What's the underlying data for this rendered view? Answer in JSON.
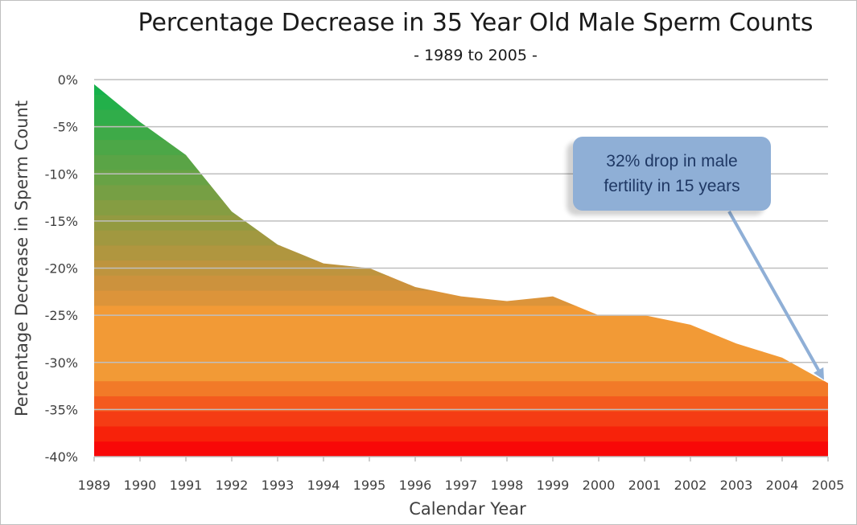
{
  "chart_data": {
    "type": "area",
    "title": "Percentage Decrease in 35 Year Old Male Sperm Counts",
    "subtitle": "- 1989 to 2005 -",
    "xlabel": "Calendar Year",
    "ylabel": "Percentage Decrease in Sperm Count",
    "x": [
      1989,
      1990,
      1991,
      1992,
      1993,
      1994,
      1995,
      1996,
      1997,
      1998,
      1999,
      2000,
      2001,
      2002,
      2003,
      2004,
      2005
    ],
    "values": [
      -0.5,
      -4.5,
      -8,
      -14,
      -17.5,
      -19.5,
      -20,
      -22,
      -23,
      -23.5,
      -23,
      -25,
      -25,
      -26,
      -28,
      -29.5,
      -32.2
    ],
    "ylim": [
      -40,
      0
    ],
    "yticks": [
      0,
      -5,
      -10,
      -15,
      -20,
      -25,
      -30,
      -35,
      -40
    ],
    "ytick_labels": [
      "0%",
      "-5%",
      "-10%",
      "-15%",
      "-20%",
      "-25%",
      "-30%",
      "-35%",
      "-40%"
    ],
    "xtick_labels": [
      "1989",
      "1990",
      "1991",
      "1992",
      "1993",
      "1994",
      "1995",
      "1996",
      "1997",
      "1998",
      "1999",
      "2000",
      "2001",
      "2002",
      "2003",
      "2004",
      "2005"
    ],
    "grid": true,
    "legend": "none",
    "annotation": {
      "text_line1": "32% drop in male",
      "text_line2": "fertility in 15 years",
      "points_to_x": 2005
    },
    "colors": {
      "gridline": "#bfbfbf",
      "callout_fill": "#8fafd6",
      "callout_text": "#1f3864",
      "arrow": "#8fafd6",
      "bands": [
        "#16b14b",
        "#22b04a",
        "#30ad4a",
        "#3eaa48",
        "#4ca747",
        "#5aa446",
        "#68a245",
        "#769f44",
        "#859d42",
        "#939a41",
        "#a19840",
        "#b0963f",
        "#be943e",
        "#cc923d",
        "#dc943a",
        "#f29a36",
        "#f29a36",
        "#f29a36",
        "#f29a36",
        "#f29a36",
        "#f27a28",
        "#f45a1e",
        "#f53c14",
        "#f7220a",
        "#f80808"
      ]
    }
  }
}
